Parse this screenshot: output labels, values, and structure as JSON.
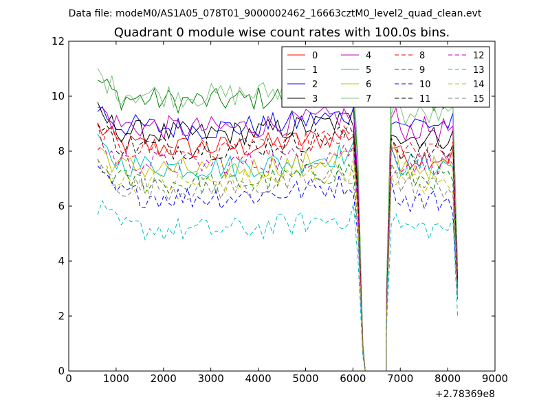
{
  "chart_data": {
    "type": "line",
    "suptitle": "Data file: modeM0/AS1A05_078T01_9000002462_16663cztM0_level2_quad_clean.evt",
    "title": "Quadrant 0 module wise count rates with 100.0s bins.",
    "xlabel": "",
    "ylabel": "",
    "x_offset_label": "+2.78369e8",
    "xlim": [
      0,
      9000
    ],
    "ylim": [
      0,
      12
    ],
    "xticks": [
      0,
      1000,
      2000,
      3000,
      4000,
      5000,
      6000,
      7000,
      8000,
      9000
    ],
    "yticks": [
      0,
      2,
      4,
      6,
      8,
      10,
      12
    ],
    "x_tick_labels": [
      "0",
      "1000",
      "2000",
      "3000",
      "4000",
      "5000",
      "6000",
      "7000",
      "8000",
      "9000"
    ],
    "y_tick_labels": [
      "0",
      "2",
      "4",
      "6",
      "8",
      "10",
      "12"
    ],
    "grid": false,
    "legend_position": "top-right",
    "legend_columns": 4,
    "segments": [
      {
        "x_start": 610,
        "x_end": 6210,
        "step": 100
      },
      {
        "x_start": 6710,
        "x_end": 8210,
        "step": 100
      }
    ],
    "gap_x": [
      6260,
      6700
    ],
    "gap_value": 0,
    "series": [
      {
        "name": "0",
        "color": "#ff0000",
        "dash": "solid",
        "base1": 8.3,
        "base2": 7.8,
        "end": 3.0
      },
      {
        "name": "1",
        "color": "#008000",
        "dash": "solid",
        "base1": 10.0,
        "base2": 9.8,
        "end": 3.8
      },
      {
        "name": "2",
        "color": "#0000ff",
        "dash": "solid",
        "base1": 9.0,
        "base2": 9.0,
        "end": 3.5
      },
      {
        "name": "3",
        "color": "#000000",
        "dash": "solid",
        "base1": 8.8,
        "base2": 8.5,
        "end": 3.4
      },
      {
        "name": "4",
        "color": "#bf00bf",
        "dash": "solid",
        "base1": 9.0,
        "base2": 8.8,
        "end": 3.3
      },
      {
        "name": "5",
        "color": "#00bfbf",
        "dash": "solid",
        "base1": 7.6,
        "base2": 7.5,
        "end": 2.9
      },
      {
        "name": "6",
        "color": "#bfbf00",
        "dash": "solid",
        "base1": 7.5,
        "base2": 7.4,
        "end": 2.8
      },
      {
        "name": "7",
        "color": "#7fbf7f",
        "dash": "solid",
        "base1": 10.2,
        "base2": 9.3,
        "end": 3.6
      },
      {
        "name": "8",
        "color": "#ff0000",
        "dash": "dashed",
        "base1": 8.2,
        "base2": 7.9,
        "end": 3.1
      },
      {
        "name": "9",
        "color": "#008000",
        "dash": "dashed",
        "base1": 7.0,
        "base2": 7.0,
        "end": 2.7
      },
      {
        "name": "10",
        "color": "#0000ff",
        "dash": "dashed",
        "base1": 6.5,
        "base2": 6.2,
        "end": 2.6
      },
      {
        "name": "11",
        "color": "#000000",
        "dash": "dashed",
        "base1": 8.3,
        "base2": 8.0,
        "end": 3.2
      },
      {
        "name": "12",
        "color": "#bf00bf",
        "dash": "dashed",
        "base1": 7.7,
        "base2": 7.6,
        "end": 3.0
      },
      {
        "name": "13",
        "color": "#00bfbf",
        "dash": "dashed",
        "base1": 5.3,
        "base2": 5.2,
        "end": 2.0
      },
      {
        "name": "14",
        "color": "#bfbf00",
        "dash": "dashed",
        "base1": 7.0,
        "base2": 6.8,
        "end": 2.7
      },
      {
        "name": "15",
        "color": "#7f7f7f",
        "dash": "dashed",
        "base1": 6.8,
        "base2": 6.7,
        "end": 2.6
      }
    ]
  }
}
